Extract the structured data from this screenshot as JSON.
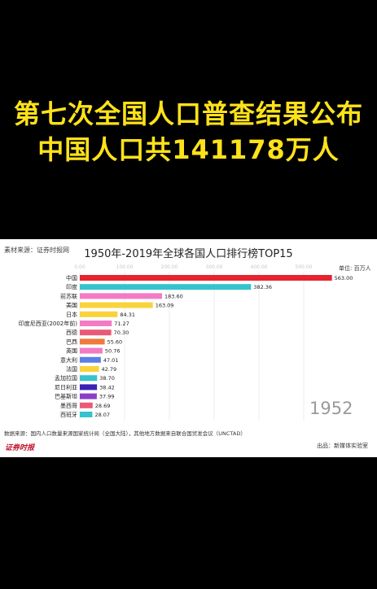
{
  "headline": {
    "line1": "第七次全国人口普查结果公布",
    "line2": "中国人口共141178万人"
  },
  "source_top": "素材来源：证券时报网",
  "unit_label": "单位: 百万人",
  "year": "1952",
  "note": "数据来源：国内人口数量来源国家统计局（全国大陆），其他地方数据来自联合国贸发会议（UNCTAD）",
  "logo_text": "证券时报",
  "producer": "出品：新媒体实验室",
  "colors": {
    "headline": "#ffe21a",
    "bars": [
      "#e8222e",
      "#35c3cf",
      "#f27bc4",
      "#f9d33b",
      "#f9d33b",
      "#f27bc4",
      "#ea5a78",
      "#f07a3a",
      "#f27bc4",
      "#5b7fe3",
      "#f9d33b",
      "#35c3cf",
      "#3a22b7",
      "#8a3fc9",
      "#ea5a78",
      "#35c3cf",
      "#f29a6a"
    ]
  },
  "chart_data": {
    "type": "bar",
    "orientation": "horizontal",
    "title": "1950年-2019年全球各国人口排行榜TOP15",
    "xlim": [
      0,
      600
    ],
    "xticks": [
      "0.00",
      "100.00",
      "200.00",
      "300.00",
      "400.00",
      "500.00"
    ],
    "xtick_values": [
      0,
      100,
      200,
      300,
      400,
      500
    ],
    "categories": [
      "中国",
      "印度",
      "前苏联",
      "美国",
      "日本",
      "印度尼西亚(2002年前)",
      "西德",
      "巴西",
      "英国",
      "意大利",
      "法国",
      "孟加拉国",
      "尼日利亚",
      "巴基斯坦",
      "墨西哥",
      "西班牙"
    ],
    "values": [
      563.0,
      382.36,
      183.6,
      163.09,
      84.31,
      71.27,
      70.3,
      55.6,
      50.76,
      47.01,
      42.79,
      38.7,
      38.42,
      37.99,
      28.69,
      28.07
    ],
    "value_labels": [
      "563.00",
      "382.36",
      "183.60",
      "163.09",
      "84.31",
      "71.27",
      "70.30",
      "55.60",
      "50.76",
      "47.01",
      "42.79",
      "38.70",
      "38.42",
      "37.99",
      "28.69",
      "28.07"
    ]
  }
}
